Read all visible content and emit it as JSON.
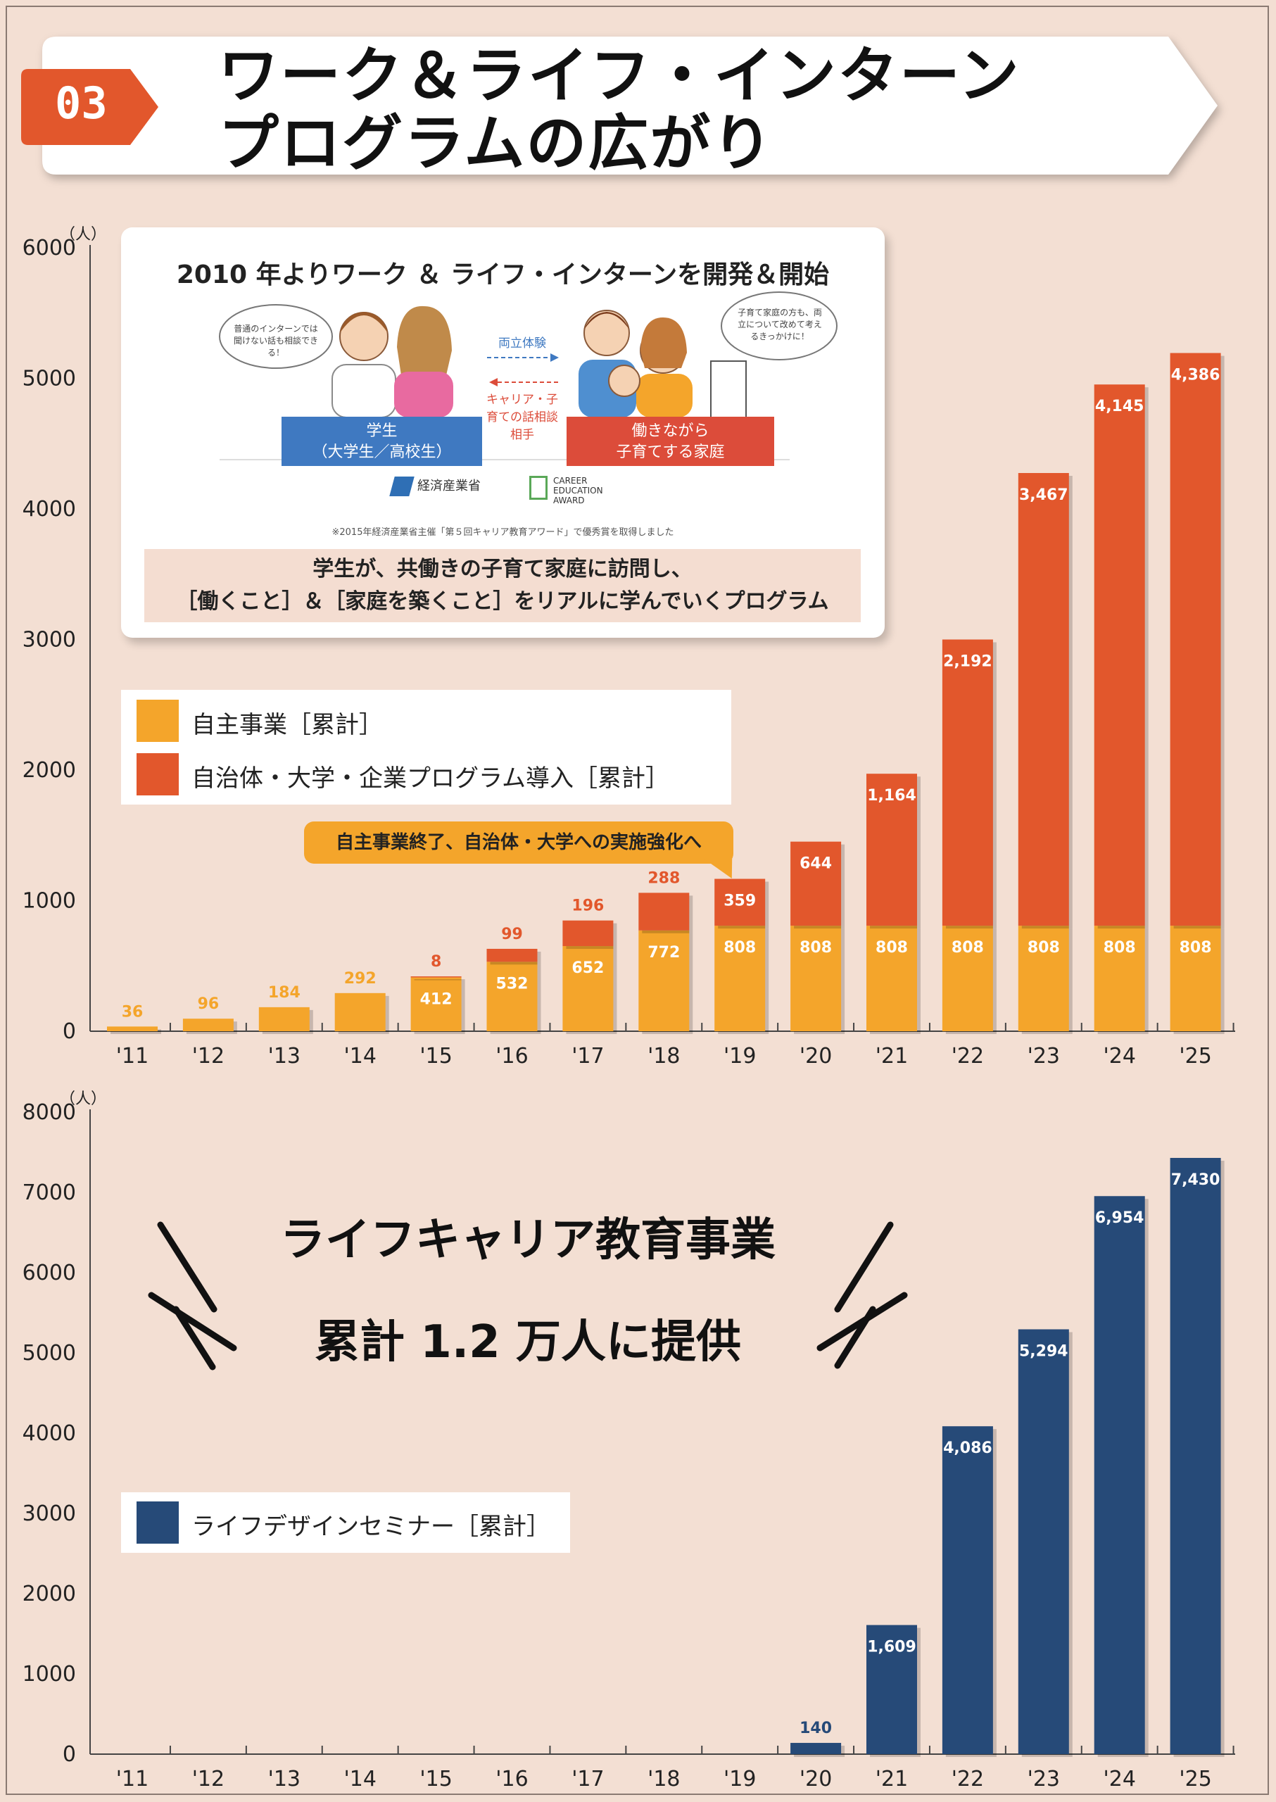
{
  "header": {
    "badge": "03",
    "title_line1": "ワーク＆ライフ・インターン",
    "title_line2": "プログラムの広がり"
  },
  "info_card": {
    "title": "2010 年よりワーク ＆ ライフ・インターンを開発＆開始",
    "speech_left": "普通のインターンでは聞けない話も相談できる！",
    "speech_right": "子育て家庭の方も、両立について改めて考えるきっかけに！",
    "arrow_top_label": "両立体験",
    "arrow_bottom_label": "キャリア・子育ての話相談相手",
    "student_label": "学生",
    "student_sub": "（大学生／高校生）",
    "family_label1": "働きながら",
    "family_label2": "子育てする家庭",
    "logo_meti": "経済産業省",
    "logo_award": "CAREER EDUCATION AWARD",
    "footnote": "※2015年経済産業省主催「第５回キャリア教育アワード」で優秀賞を取得しました",
    "desc_line1": "学生が、共働きの子育て家庭に訪問し、",
    "desc_line2": "［働くこと］＆［家庭を築くこと］をリアルに学んでいくプログラム"
  },
  "callout": "自主事業終了、自治体・大学への実施強化へ",
  "headline": {
    "line1": "ライフキャリア教育事業",
    "line2": "累計 1.2 万人に提供"
  },
  "colors": {
    "self": "#f4a52b",
    "partner": "#e2572c",
    "seminar": "#264a78",
    "badge": "#e2572c"
  },
  "chart_data": [
    {
      "type": "bar",
      "stacked": true,
      "unit": "（人）",
      "categories": [
        "'11",
        "'12",
        "'13",
        "'14",
        "'15",
        "'16",
        "'17",
        "'18",
        "'19",
        "'20",
        "'21",
        "'22",
        "'23",
        "'24",
        "'25"
      ],
      "ylim": [
        0,
        6000
      ],
      "yticks": [
        0,
        1000,
        2000,
        3000,
        4000,
        5000,
        6000
      ],
      "series": [
        {
          "name": "自主事業［累計］",
          "values": [
            36,
            96,
            184,
            292,
            412,
            532,
            652,
            772,
            808,
            808,
            808,
            808,
            808,
            808,
            808
          ]
        },
        {
          "name": "自治体・大学・企業プログラム導入［累計］",
          "values": [
            0,
            0,
            0,
            0,
            8,
            99,
            196,
            288,
            359,
            644,
            1164,
            2192,
            3467,
            4145,
            4386
          ]
        }
      ]
    },
    {
      "type": "bar",
      "unit": "（人）",
      "categories": [
        "'11",
        "'12",
        "'13",
        "'14",
        "'15",
        "'16",
        "'17",
        "'18",
        "'19",
        "'20",
        "'21",
        "'22",
        "'23",
        "'24",
        "'25"
      ],
      "ylim": [
        0,
        8000
      ],
      "yticks": [
        0,
        1000,
        2000,
        3000,
        4000,
        5000,
        6000,
        7000,
        8000
      ],
      "series": [
        {
          "name": "ライフデザインセミナー［累計］",
          "values": [
            0,
            0,
            0,
            0,
            0,
            0,
            0,
            0,
            0,
            140,
            1609,
            4086,
            5294,
            6954,
            7430
          ]
        }
      ]
    }
  ]
}
